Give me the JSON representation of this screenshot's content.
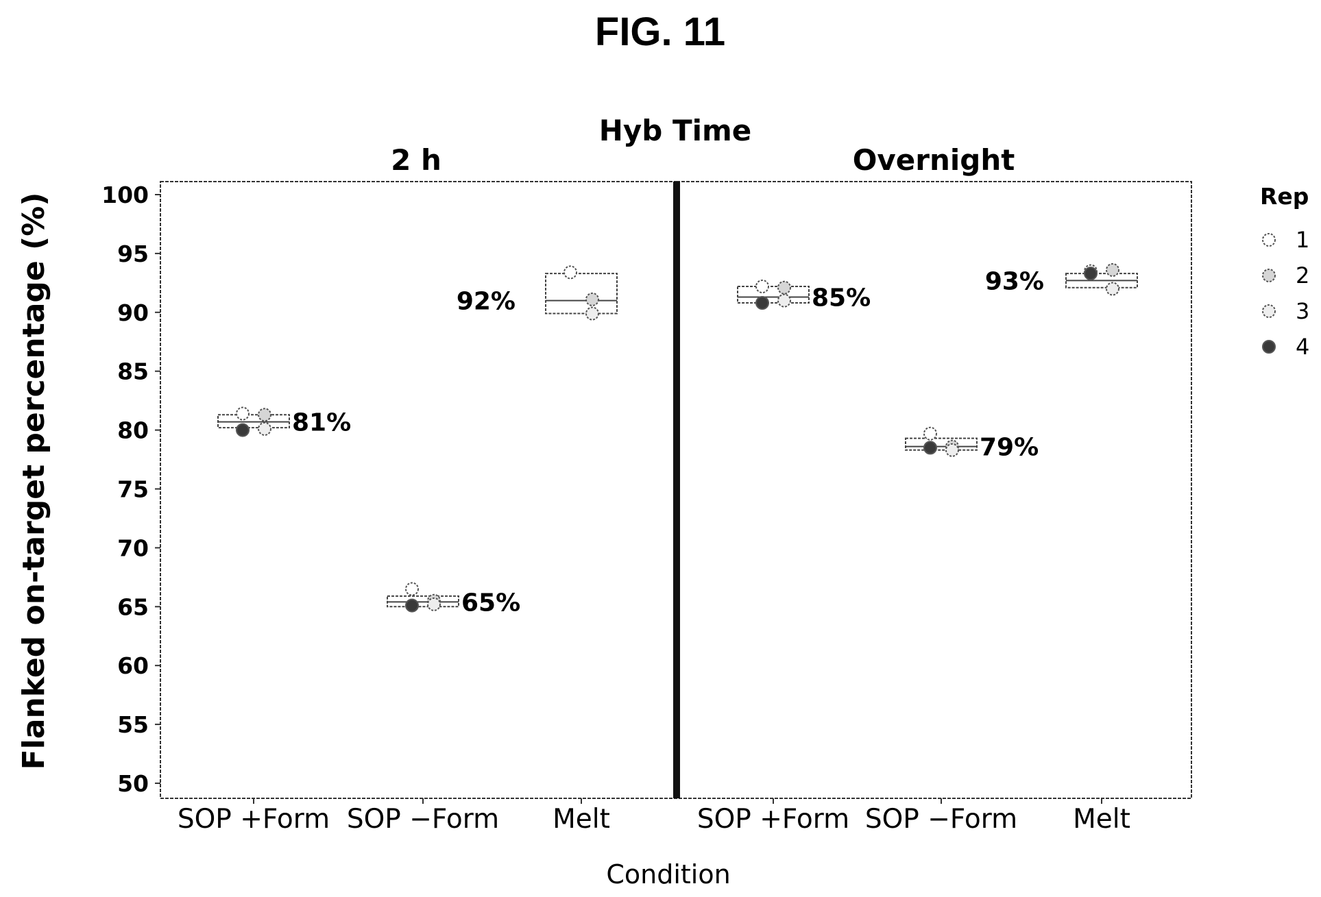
{
  "figure_label": "FIG. 11",
  "chart_data": {
    "type": "box",
    "facet_title": "Hyb Time",
    "xlabel": "Condition",
    "ylabel": "Flanked on-target percentage (%)",
    "ylim": [
      50,
      100
    ],
    "yticks": [
      50,
      55,
      60,
      65,
      70,
      75,
      80,
      85,
      90,
      95,
      100
    ],
    "grid": false,
    "legend": {
      "title": "Rep",
      "position": "right",
      "entries": [
        {
          "label": "1",
          "fill": "#ffffff"
        },
        {
          "label": "2",
          "fill": "#d6d6d6"
        },
        {
          "label": "3",
          "fill": "#eeeeee"
        },
        {
          "label": "4",
          "fill": "#3a3a3a"
        }
      ]
    },
    "panels": [
      {
        "title": "2 h",
        "groups": [
          {
            "category": "SOP +Form",
            "annotation": "81%",
            "box": [
              80.2,
              80.7,
              81.3
            ],
            "points": [
              {
                "rep": "1",
                "y": 81.4
              },
              {
                "rep": "2",
                "y": 81.3
              },
              {
                "rep": "3",
                "y": 80.1
              },
              {
                "rep": "4",
                "y": 80.0
              }
            ]
          },
          {
            "category": "SOP −Form",
            "annotation": "65%",
            "box": [
              65.0,
              65.4,
              65.9
            ],
            "points": [
              {
                "rep": "1",
                "y": 66.5
              },
              {
                "rep": "2",
                "y": 65.5
              },
              {
                "rep": "3",
                "y": 65.2
              },
              {
                "rep": "4",
                "y": 65.1
              }
            ]
          },
          {
            "category": "Melt",
            "annotation": "92%",
            "box": [
              89.9,
              91.0,
              93.3
            ],
            "points": [
              {
                "rep": "1",
                "y": 93.4
              },
              {
                "rep": "2",
                "y": 91.1
              },
              {
                "rep": "3",
                "y": 89.9
              }
            ]
          }
        ]
      },
      {
        "title": "Overnight",
        "groups": [
          {
            "category": "SOP +Form",
            "annotation": "85%",
            "box": [
              90.8,
              91.3,
              92.2
            ],
            "points": [
              {
                "rep": "1",
                "y": 92.2
              },
              {
                "rep": "2",
                "y": 92.1
              },
              {
                "rep": "3",
                "y": 91.0
              },
              {
                "rep": "4",
                "y": 90.8
              }
            ]
          },
          {
            "category": "SOP −Form",
            "annotation": "79%",
            "box": [
              78.3,
              78.6,
              79.3
            ],
            "points": [
              {
                "rep": "1",
                "y": 79.7
              },
              {
                "rep": "2",
                "y": 78.6
              },
              {
                "rep": "3",
                "y": 78.3
              },
              {
                "rep": "4",
                "y": 78.5
              }
            ]
          },
          {
            "category": "Melt",
            "annotation": "93%",
            "box": [
              92.1,
              92.7,
              93.3
            ],
            "points": [
              {
                "rep": "1",
                "y": 93.5
              },
              {
                "rep": "2",
                "y": 93.6
              },
              {
                "rep": "3",
                "y": 92.0
              },
              {
                "rep": "4",
                "y": 93.3
              }
            ]
          }
        ]
      }
    ]
  }
}
